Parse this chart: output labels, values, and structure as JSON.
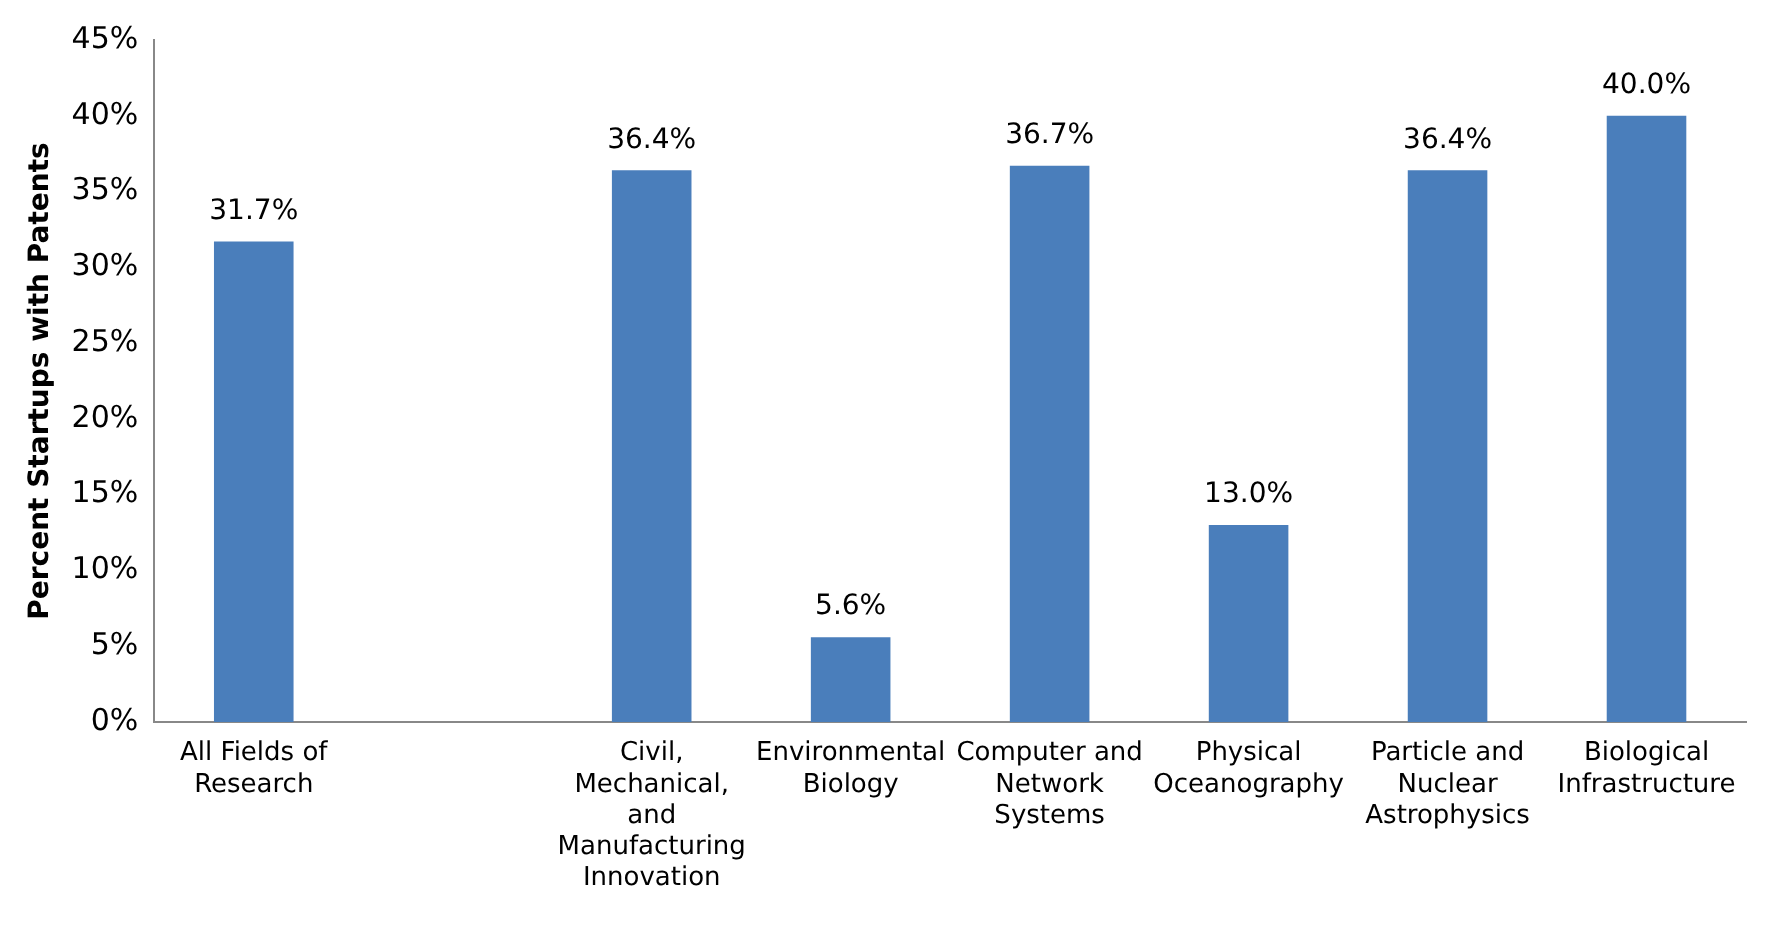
{
  "chart_data": {
    "type": "bar",
    "ylabel": "Percent Startups with Patents",
    "categories": [
      "All Fields of Research",
      null,
      "Civil, Mechanical, and Manufacturing Innovation",
      "Environmental Biology",
      "Computer and Network Systems",
      "Physical Oceanography",
      "Particle and Nuclear Astrophysics",
      "Biological Infrastructure"
    ],
    "values": [
      31.7,
      null,
      36.4,
      5.6,
      36.7,
      13.0,
      36.4,
      40.0
    ],
    "value_labels": [
      "31.7%",
      null,
      "36.4%",
      "5.6%",
      "36.7%",
      "13.0%",
      "36.4%",
      "40.0%"
    ],
    "color": "#4a7ebb",
    "ylim": [
      0,
      45
    ],
    "yticks": [
      {
        "value": 0,
        "label": "0%"
      },
      {
        "value": 5,
        "label": "5%"
      },
      {
        "value": 10,
        "label": "10%"
      },
      {
        "value": 15,
        "label": "15%"
      },
      {
        "value": 20,
        "label": "20%"
      },
      {
        "value": 25,
        "label": "25%"
      },
      {
        "value": 30,
        "label": "30%"
      },
      {
        "value": 35,
        "label": "35%"
      },
      {
        "value": 40,
        "label": "40%"
      },
      {
        "value": 45,
        "label": "45%"
      }
    ],
    "grid": false,
    "legend": false
  }
}
